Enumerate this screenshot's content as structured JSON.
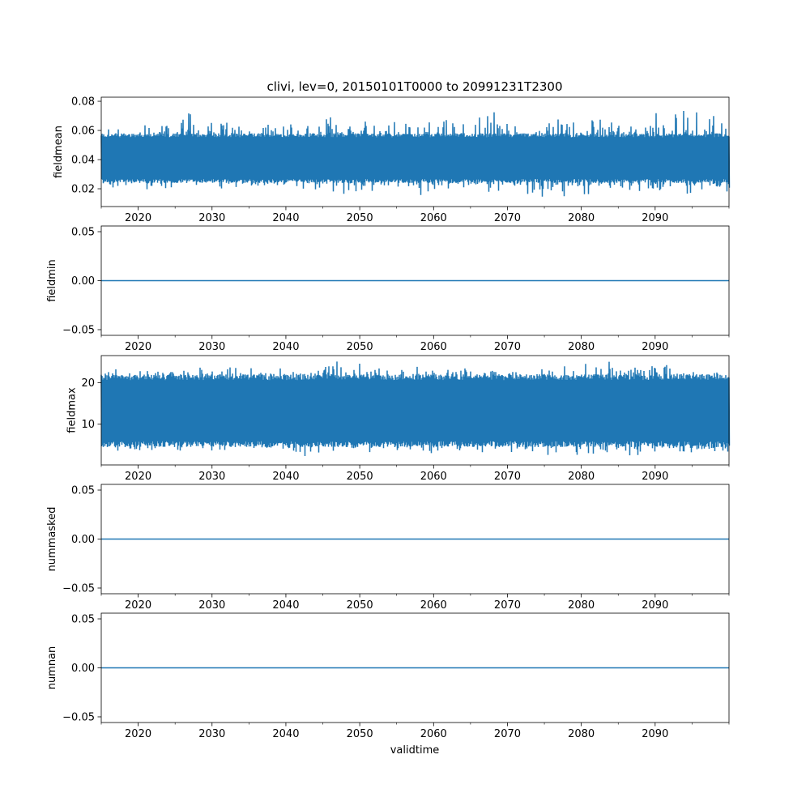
{
  "chart_data": {
    "type": "line",
    "title": "clivi, lev=0, 20150101T0000 to 20991231T2300",
    "xlabel": "validtime",
    "xlim": [
      2015,
      2100
    ],
    "x_ticks": [
      "2020",
      "2030",
      "2040",
      "2050",
      "2060",
      "2070",
      "2080",
      "2090"
    ],
    "x_tick_values": [
      2020,
      2030,
      2040,
      2050,
      2060,
      2070,
      2080,
      2090
    ],
    "x_minor_tick_values": [
      2015,
      2025,
      2035,
      2045,
      2055,
      2065,
      2075,
      2085,
      2095,
      2100
    ],
    "color": "#1f77b4",
    "envelope_bin_start_years": [
      2015,
      2020,
      2025,
      2030,
      2035,
      2040,
      2045,
      2050,
      2055,
      2060,
      2065,
      2070,
      2075,
      2080,
      2085,
      2090,
      2095
    ],
    "panels": [
      {
        "ylabel": "fieldmean",
        "ylim": [
          0.0078,
          0.0828
        ],
        "y_ticks": [
          "0.02",
          "0.04",
          "0.06",
          "0.08"
        ],
        "y_tick_values": [
          0.02,
          0.04,
          0.06,
          0.08
        ],
        "kind": "noisy",
        "typical_upper": 0.058,
        "typical_lower": 0.024,
        "max_by_bin": [
          0.064,
          0.066,
          0.078,
          0.068,
          0.066,
          0.067,
          0.073,
          0.068,
          0.071,
          0.07,
          0.074,
          0.068,
          0.069,
          0.072,
          0.066,
          0.079,
          0.079
        ],
        "min_by_bin": [
          0.019,
          0.018,
          0.02,
          0.019,
          0.019,
          0.017,
          0.013,
          0.016,
          0.013,
          0.018,
          0.016,
          0.014,
          0.013,
          0.014,
          0.016,
          0.015,
          0.017
        ]
      },
      {
        "ylabel": "fieldmin",
        "ylim": [
          -0.0558,
          0.0558
        ],
        "y_ticks": [
          "−0.05",
          "0.00",
          "0.05"
        ],
        "y_tick_values": [
          -0.05,
          0,
          0.05
        ],
        "kind": "constant",
        "value": 0
      },
      {
        "ylabel": "fieldmax",
        "ylim": [
          0.2,
          26.5
        ],
        "y_ticks": [
          "10",
          "20"
        ],
        "y_tick_values": [
          10,
          20
        ],
        "kind": "noisy",
        "typical_upper": 22.0,
        "typical_lower": 4.5,
        "max_by_bin": [
          24,
          24,
          24,
          24.5,
          24.5,
          24,
          25.5,
          24.5,
          24.5,
          24.5,
          24.5,
          24.5,
          24.5,
          25.5,
          25.5,
          24.5,
          24
        ],
        "min_by_bin": [
          3,
          3,
          2.5,
          3,
          2.5,
          2,
          3,
          3,
          2.5,
          2,
          3,
          2.5,
          2,
          2,
          2,
          2.5,
          3
        ]
      },
      {
        "ylabel": "nummasked",
        "ylim": [
          -0.0558,
          0.0558
        ],
        "y_ticks": [
          "−0.05",
          "0.00",
          "0.05"
        ],
        "y_tick_values": [
          -0.05,
          0,
          0.05
        ],
        "kind": "constant",
        "value": 0
      },
      {
        "ylabel": "numnan",
        "ylim": [
          -0.0558,
          0.0558
        ],
        "y_ticks": [
          "−0.05",
          "0.00",
          "0.05"
        ],
        "y_tick_values": [
          -0.05,
          0,
          0.05
        ],
        "kind": "constant",
        "value": 0
      }
    ]
  }
}
